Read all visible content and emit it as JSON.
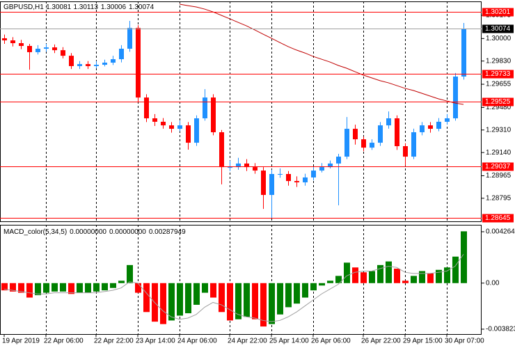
{
  "chart_data": [
    {
      "type": "candlestick",
      "title": "GBPUSD,H1",
      "header_values": [
        1.30081,
        1.30113,
        1.30006,
        1.30074
      ],
      "ylim": [
        1.28621,
        1.3028
      ],
      "yticks": [
        1.30175,
        {
          "value": 1.3,
          "label": "1.30000"
        },
        {
          "value": 1.2983,
          "label": "1.29830"
        },
        1.29655,
        {
          "value": 1.2948,
          "label": "1.29480"
        },
        {
          "value": 1.2931,
          "label": "1.29310"
        },
        {
          "value": 1.2914,
          "label": "1.29140"
        },
        1.28965,
        1.28795
      ],
      "up_color": "#1e90ff",
      "down_color": "#ff0000",
      "open": [
        1.30002,
        1.29986,
        1.29965,
        1.29944,
        1.29897,
        1.29923,
        1.29933,
        1.29912,
        1.2987,
        1.29792,
        1.29807,
        1.29792,
        1.29802,
        1.29818,
        1.29844,
        1.29923,
        1.3008,
        1.29555,
        1.29398,
        1.29372,
        1.29345,
        1.29319,
        1.29345,
        1.29214,
        1.29398,
        1.29555,
        1.29293,
        1.2903,
        1.2903,
        1.29057,
        1.2903,
        1.29004,
        1.2882,
        1.28978,
        1.28978,
        1.28925,
        1.28915,
        1.28952,
        1.29004,
        1.2903,
        1.29057,
        1.29109,
        1.29319,
        1.2924,
        1.29177,
        1.29214,
        1.29345,
        1.29398,
        1.29188,
        1.29109,
        1.29293,
        1.29345,
        1.29319,
        1.29372,
        1.29398,
        1.29713
      ],
      "high": [
        1.3003,
        1.3001,
        1.2999,
        1.2996,
        1.2995,
        1.2996,
        1.29955,
        1.29935,
        1.2989,
        1.2983,
        1.2983,
        1.2983,
        1.2984,
        1.2987,
        1.2995,
        1.30133,
        1.301,
        1.2958,
        1.2943,
        1.294,
        1.2937,
        1.2938,
        1.2937,
        1.2942,
        1.29618,
        1.2958,
        1.2931,
        1.2908,
        1.291,
        1.2909,
        1.2906,
        1.2903,
        1.2901,
        1.2902,
        1.29,
        1.2896,
        1.2898,
        1.2903,
        1.2906,
        1.2908,
        1.2913,
        1.29408,
        1.2935,
        1.2926,
        1.2924,
        1.2937,
        1.2945,
        1.2942,
        1.2921,
        1.2932,
        1.2937,
        1.2937,
        1.294,
        1.2943,
        1.2974,
        1.30117
      ],
      "low": [
        1.2996,
        1.2994,
        1.2992,
        1.29765,
        1.2988,
        1.299,
        1.2989,
        1.2985,
        1.2977,
        1.2977,
        1.2977,
        1.29775,
        1.2979,
        1.298,
        1.2982,
        1.299,
        1.2952,
        1.2937,
        1.2934,
        1.2932,
        1.2929,
        1.293,
        1.29162,
        1.2919,
        1.2938,
        1.2927,
        1.289,
        1.29,
        1.2901,
        1.29,
        1.2898,
        1.28715,
        1.28647,
        1.2895,
        1.2889,
        1.2888,
        1.2889,
        1.2893,
        1.2899,
        1.2902,
        1.28742,
        1.2909,
        1.292,
        1.2915,
        1.2916,
        1.2919,
        1.2932,
        1.2916,
        1.29041,
        1.2909,
        1.2927,
        1.2929,
        1.293,
        1.2935,
        1.2938,
        1.2969
      ],
      "close": [
        1.29986,
        1.29965,
        1.29944,
        1.29897,
        1.29923,
        1.29933,
        1.29912,
        1.2987,
        1.29792,
        1.29807,
        1.29792,
        1.29802,
        1.29818,
        1.29844,
        1.29923,
        1.3008,
        1.29555,
        1.29398,
        1.29372,
        1.29345,
        1.29319,
        1.29345,
        1.29214,
        1.29398,
        1.29555,
        1.29293,
        1.2903,
        1.2903,
        1.29057,
        1.2903,
        1.29004,
        1.2882,
        1.28978,
        1.28978,
        1.28925,
        1.28915,
        1.28952,
        1.29004,
        1.2903,
        1.29057,
        1.29109,
        1.29319,
        1.2924,
        1.29177,
        1.29214,
        1.29345,
        1.29398,
        1.29188,
        1.29109,
        1.29293,
        1.29345,
        1.29319,
        1.29372,
        1.29398,
        1.29713,
        1.30074
      ],
      "ma": {
        "color": "#c00000",
        "values": [
          null,
          null,
          null,
          null,
          null,
          null,
          null,
          null,
          null,
          null,
          null,
          null,
          null,
          null,
          null,
          null,
          null,
          null,
          null,
          null,
          null,
          1.30259,
          1.30248,
          1.30238,
          1.30222,
          1.30201,
          1.30175,
          1.30149,
          1.30122,
          1.30096,
          1.30065,
          1.30033,
          1.30002,
          1.2997,
          1.29939,
          1.29913,
          1.29891,
          1.29865,
          1.29844,
          1.29823,
          1.29797,
          1.29776,
          1.2975,
          1.29724,
          1.29703,
          1.29682,
          1.29666,
          1.29645,
          1.29624,
          1.29608,
          1.29587,
          1.29566,
          1.29545,
          1.29529,
          1.29513,
          1.29503
        ]
      },
      "levels": [
        1.30201,
        1.29733,
        1.29525,
        1.29037,
        1.28645
      ],
      "level_color": "#ff0000",
      "current_price": 1.30074,
      "current_color": "#000000"
    },
    {
      "type": "bar",
      "title": "MACD_color(5,34,5)",
      "header_values": [
        {
          "value": 0,
          "label": "0.00000000"
        },
        {
          "value": 0,
          "label": "0.00000000"
        },
        {
          "value": 0.00287949,
          "label": "0.00287949"
        }
      ],
      "ylim": [
        -0.00423,
        0.00484
      ],
      "yticks": [
        0.0042647,
        {
          "value": 0,
          "label": "0.00"
        },
        -0.003823
      ],
      "up_color": "#008000",
      "down_color": "#ff0000",
      "signal_color": "#a0a0a0",
      "xgrid": true,
      "categories": [
        "19 Apr 2019",
        null,
        null,
        null,
        null,
        "22 Apr 06:00",
        null,
        null,
        null,
        null,
        null,
        "22 Apr 22:00",
        null,
        null,
        null,
        null,
        "23 Apr 14:00",
        null,
        null,
        null,
        null,
        "24 Apr 06:00",
        null,
        null,
        null,
        null,
        null,
        "24 Apr 22:00",
        null,
        null,
        null,
        null,
        "25 Apr 14:00",
        null,
        null,
        null,
        null,
        "26 Apr 06:00",
        null,
        null,
        null,
        null,
        null,
        "26 Apr 22:00",
        null,
        null,
        null,
        null,
        "29 Apr 15:00",
        null,
        null,
        null,
        null,
        "30 Apr 07:00",
        null,
        null
      ],
      "values": [
        -0.0006,
        -0.0007,
        -0.0008,
        -0.0012,
        -0.001,
        -0.0008,
        -0.0007,
        -0.0007,
        -0.0009,
        -0.0008,
        -0.0008,
        -0.0007,
        -0.0006,
        -0.0004,
        0.0002,
        0.0015,
        -0.0008,
        -0.0024,
        -0.0032,
        -0.0034,
        -0.0031,
        -0.0027,
        -0.0025,
        -0.0018,
        -0.0008,
        -0.0012,
        -0.0024,
        -0.0031,
        -0.003,
        -0.0028,
        -0.003,
        -0.0036,
        -0.0034,
        -0.0026,
        -0.002,
        -0.0017,
        -0.0012,
        -0.0006,
        -0.0002,
        0.0002,
        0.0006,
        0.0017,
        0.0013,
        0.0009,
        0.001,
        0.0015,
        0.0018,
        0.0012,
        0.0002,
        0.0006,
        0.001,
        0.0008,
        0.0011,
        0.0013,
        0.0022,
        0.0043
      ],
      "signal": [
        -0.0005,
        -0.0006,
        -0.0007,
        -0.0008,
        -0.0009,
        -0.0009,
        -0.0008,
        -0.0008,
        -0.0008,
        -0.0008,
        -0.0008,
        -0.0008,
        -0.0007,
        -0.0006,
        -0.0004,
        0.0001,
        0,
        -0.0008,
        -0.0016,
        -0.0023,
        -0.0028,
        -0.003,
        -0.0029,
        -0.0026,
        -0.002,
        -0.0016,
        -0.0018,
        -0.0022,
        -0.0026,
        -0.0028,
        -0.0029,
        -0.0031,
        -0.0032,
        -0.0031,
        -0.0028,
        -0.0024,
        -0.0019,
        -0.0014,
        -0.0009,
        -0.0005,
        -0.0001,
        0.0006,
        0.0009,
        0.001,
        0.001,
        0.0012,
        0.0014,
        0.0013,
        0.0009,
        0.0008,
        0.0008,
        0.0008,
        0.0009,
        0.001,
        0.0014,
        0.0024
      ]
    }
  ]
}
